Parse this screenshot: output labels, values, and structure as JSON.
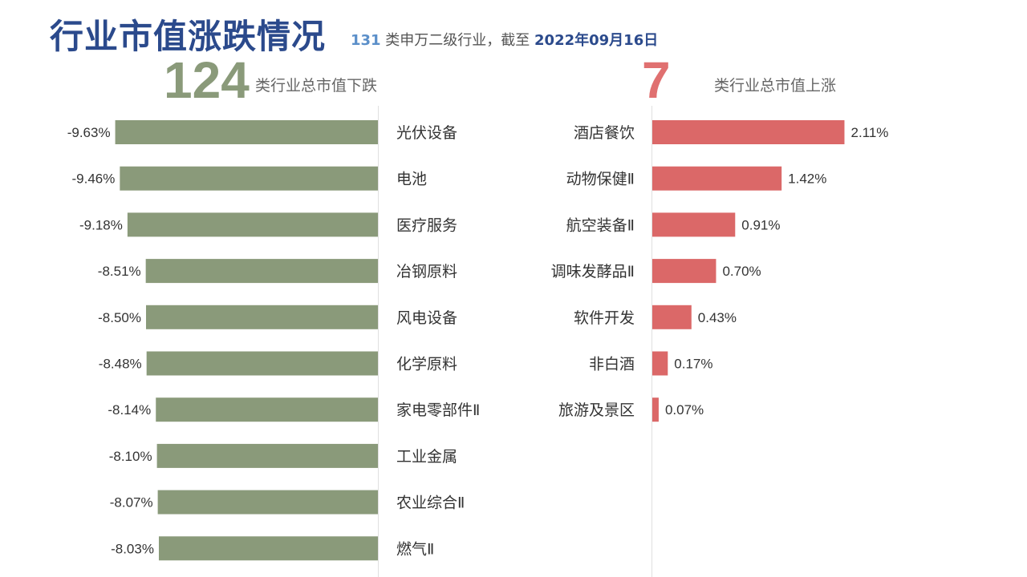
{
  "header": {
    "title": "行业市值涨跌情况",
    "subtitle_count": "131",
    "subtitle_text": " 类申万二级行业，截至 ",
    "subtitle_date": "2022年09月16日"
  },
  "summary": {
    "down_count": "124",
    "down_label": "类行业总市值下跌",
    "up_count": "7",
    "up_label": "类行业总市值上涨"
  },
  "colors": {
    "down_bar": "#8a9a7a",
    "up_bar": "#db6868",
    "title": "#2b4a8c"
  },
  "chart_data": [
    {
      "type": "bar",
      "orientation": "horizontal",
      "categories": [
        "光伏设备",
        "电池",
        "医疗服务",
        "冶钢原料",
        "风电设备",
        "化学原料",
        "家电零部件Ⅱ",
        "工业金属",
        "农业综合Ⅱ",
        "燃气Ⅱ"
      ],
      "values": [
        -9.63,
        -9.46,
        -9.18,
        -8.51,
        -8.5,
        -8.48,
        -8.14,
        -8.1,
        -8.07,
        -8.03
      ],
      "value_labels": [
        "-9.63%",
        "-9.46%",
        "-9.18%",
        "-8.51%",
        "-8.50%",
        "-8.48%",
        "-8.14%",
        "-8.10%",
        "-8.07%",
        "-8.03%"
      ],
      "unit": "%"
    },
    {
      "type": "bar",
      "orientation": "horizontal",
      "categories": [
        "酒店餐饮",
        "动物保健Ⅱ",
        "航空装备Ⅱ",
        "调味发酵品Ⅱ",
        "软件开发",
        "非白酒",
        "旅游及景区"
      ],
      "values": [
        2.11,
        1.42,
        0.91,
        0.7,
        0.43,
        0.17,
        0.07
      ],
      "value_labels": [
        "2.11%",
        "1.42%",
        "0.91%",
        "0.70%",
        "0.43%",
        "0.17%",
        "0.07%"
      ],
      "unit": "%"
    }
  ]
}
